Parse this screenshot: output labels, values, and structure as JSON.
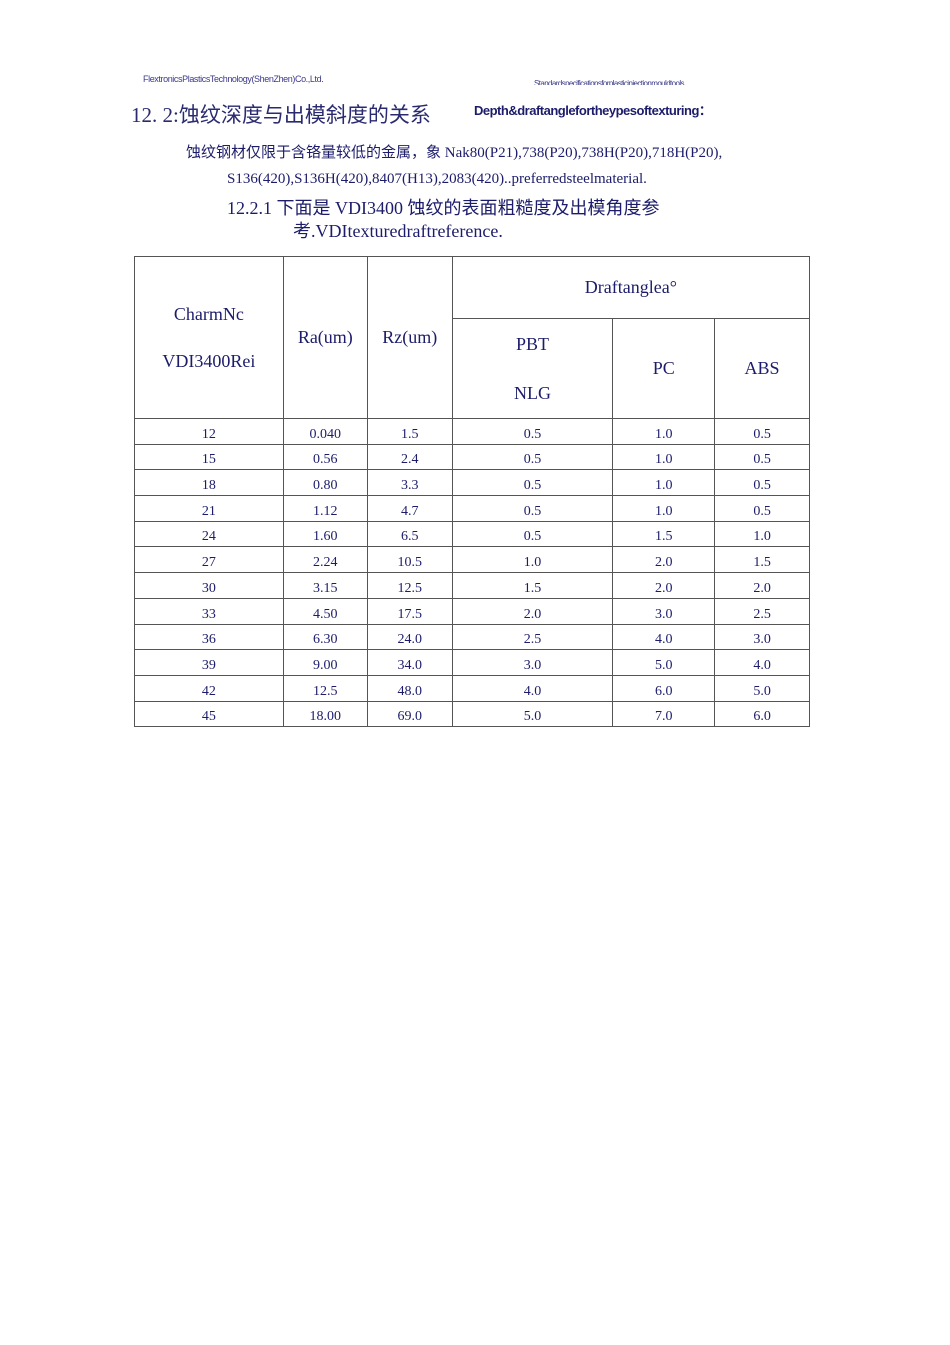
{
  "header": {
    "company": "FlextronicsPlasticsTechnology(ShenZhen)Co.,Ltd.",
    "doc_title": "Standardspecificationsforplasticinjectionmouldtools"
  },
  "section": {
    "title": "12. 2:蚀纹深度与出模斜度的关系",
    "title_en": "Depth&draftanglefortheypesoftexturing：",
    "para_line1": "蚀纹钢材仅限于含铬量较低的金属，象 Nak80(P21),738(P20),738H(P20),718H(P20),",
    "para_line2": "S136(420),S136H(420),8407(H13),2083(420)..preferredsteelmaterial.",
    "sub_line1": "12.2.1 下面是 VDI3400 蚀纹的表面粗糙度及出模角度参",
    "sub_line2": "考.VDItexturedraftreference."
  },
  "table": {
    "headers": {
      "charm_line1": "CharmNc",
      "charm_line2": "VDI3400Rei",
      "ra": "Ra(um)",
      "rz": "Rz(um)",
      "draft": "Draftanglea°",
      "pbt_line1": "PBT",
      "pbt_line2": "NLG",
      "pc": "PC",
      "abs": "ABS"
    },
    "rows": [
      [
        "12",
        "0.040",
        "1.5",
        "0.5",
        "1.0",
        "0.5"
      ],
      [
        "15",
        "0.56",
        "2.4",
        "0.5",
        "1.0",
        "0.5"
      ],
      [
        "18",
        "0.80",
        "3.3",
        "0.5",
        "1.0",
        "0.5"
      ],
      [
        "21",
        "1.12",
        "4.7",
        "0.5",
        "1.0",
        "0.5"
      ],
      [
        "24",
        "1.60",
        "6.5",
        "0.5",
        "1.5",
        "1.0"
      ],
      [
        "27",
        "2.24",
        "10.5",
        "1.0",
        "2.0",
        "1.5"
      ],
      [
        "30",
        "3.15",
        "12.5",
        "1.5",
        "2.0",
        "2.0"
      ],
      [
        "33",
        "4.50",
        "17.5",
        "2.0",
        "3.0",
        "2.5"
      ],
      [
        "36",
        "6.30",
        "24.0",
        "2.5",
        "4.0",
        "3.0"
      ],
      [
        "39",
        "9.00",
        "34.0",
        "3.0",
        "5.0",
        "4.0"
      ],
      [
        "42",
        "12.5",
        "48.0",
        "4.0",
        "6.0",
        "5.0"
      ],
      [
        "45",
        "18.00",
        "69.0",
        "5.0",
        "7.0",
        "6.0"
      ]
    ]
  }
}
